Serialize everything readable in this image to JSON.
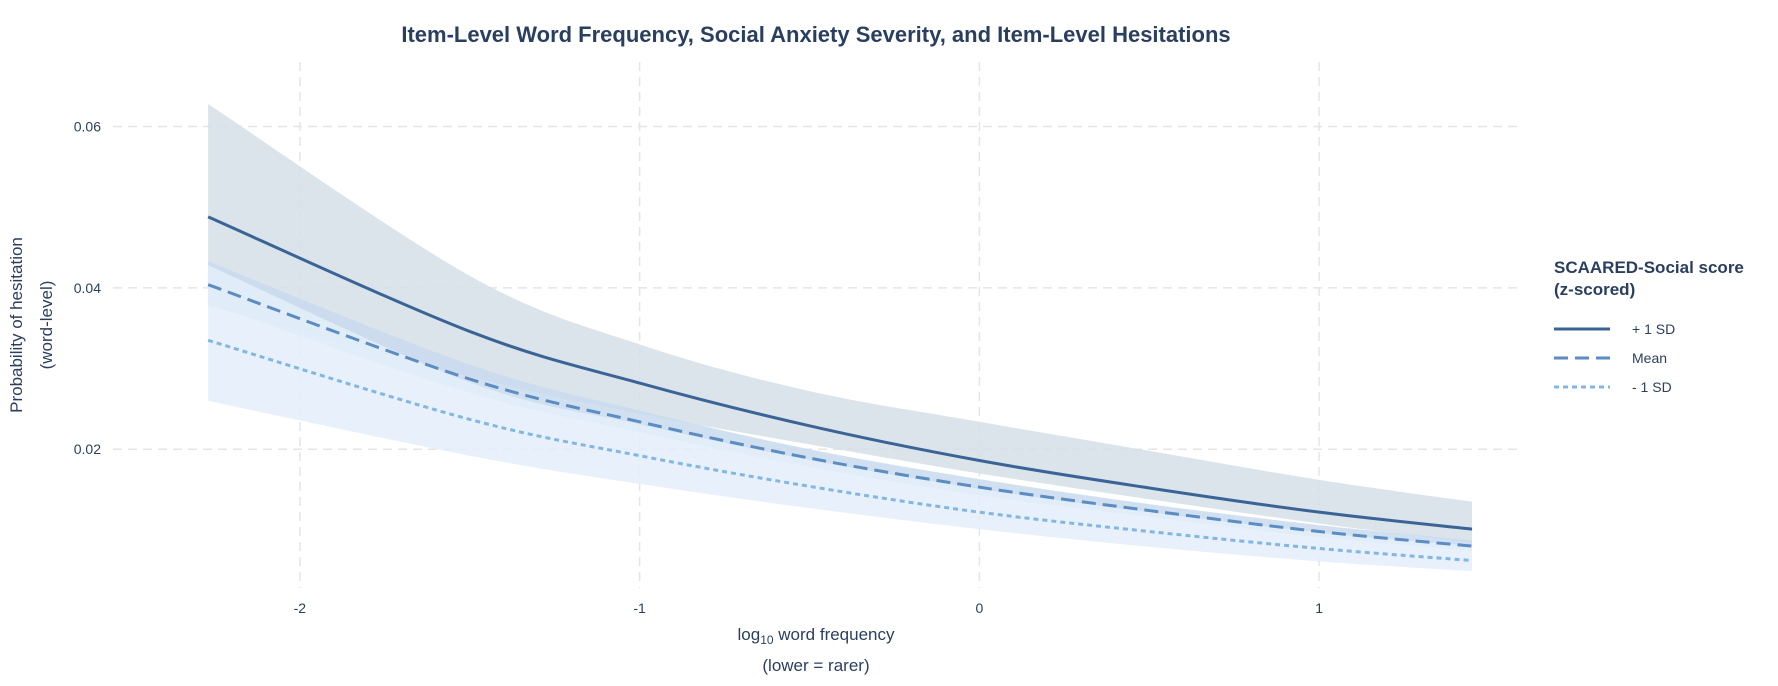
{
  "chart_data": {
    "type": "line",
    "title": "Item-Level Word Frequency, Social Anxiety Severity, and Item-Level Hesitations",
    "xlabel": "log10 word frequency",
    "xlabel_parts": {
      "main": "log",
      "sub": "10",
      "rest": " word frequency"
    },
    "xlabel_line2": "(lower = rarer)",
    "ylabel": "Probability of hesitation",
    "ylabel_line2": "(word-level)",
    "xlim": [
      -2.55,
      1.6
    ],
    "ylim": [
      0.0028,
      0.068
    ],
    "x_ticks": [
      -2,
      -1,
      0,
      1
    ],
    "x_tick_labels": [
      "-2",
      "-1",
      "0",
      "1"
    ],
    "y_ticks": [
      0.02,
      0.04,
      0.06
    ],
    "y_tick_labels": [
      "0.02",
      "0.04",
      "0.06"
    ],
    "grid": true,
    "legend": {
      "title_line1": "SCAARED-Social score",
      "title_line2": "(z-scored)",
      "position": "right"
    },
    "x": [
      -2.27,
      -1.5,
      -1.0,
      -0.5,
      0.0,
      0.5,
      1.0,
      1.45
    ],
    "series": [
      {
        "name": "+ 1 SD",
        "style": "solid",
        "color": "#3a6496",
        "band_color": "#d5dfe8",
        "values": [
          0.0488,
          0.0346,
          0.0282,
          0.0229,
          0.0186,
          0.0152,
          0.0122,
          0.0101
        ],
        "lower": [
          0.0378,
          0.029,
          0.0244,
          0.0206,
          0.017,
          0.0138,
          0.0108,
          0.0084
        ],
        "upper": [
          0.0628,
          0.0415,
          0.033,
          0.0272,
          0.0234,
          0.0198,
          0.0162,
          0.0135
        ]
      },
      {
        "name": "Mean",
        "style": "dashed",
        "color": "#5b8cc2",
        "band_color": "#c9daef",
        "values": [
          0.0404,
          0.0287,
          0.0234,
          0.0189,
          0.0153,
          0.0124,
          0.0098,
          0.008
        ],
        "lower": [
          0.038,
          0.027,
          0.0221,
          0.0178,
          0.0143,
          0.0116,
          0.0091,
          0.0074
        ],
        "upper": [
          0.0433,
          0.0305,
          0.0248,
          0.02,
          0.0163,
          0.0132,
          0.0106,
          0.0087
        ]
      },
      {
        "name": "- 1 SD",
        "style": "dotted",
        "color": "#82b6e3",
        "band_color": "#e4eefa",
        "values": [
          0.0335,
          0.0237,
          0.0192,
          0.0154,
          0.0122,
          0.0098,
          0.0077,
          0.0062
        ],
        "lower": [
          0.026,
          0.0192,
          0.0157,
          0.0127,
          0.0101,
          0.0079,
          0.0061,
          0.0049
        ],
        "upper": [
          0.0428,
          0.0283,
          0.0231,
          0.0187,
          0.0151,
          0.0122,
          0.0097,
          0.008
        ]
      }
    ]
  }
}
